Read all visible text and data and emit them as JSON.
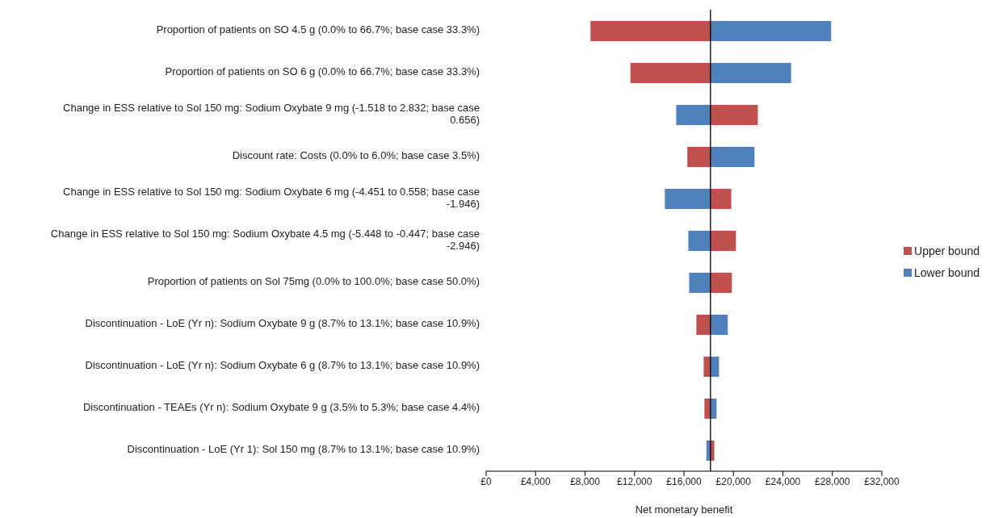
{
  "chart_data": {
    "type": "bar",
    "orientation": "horizontal",
    "xlabel": "Net monetary benefit",
    "categories": [
      "Proportion of patients on SO 4.5 g (0.0% to 66.7%; base case 33.3%)",
      "Proportion of patients on SO 6 g (0.0% to 66.7%; base case 33.3%)",
      "Change in ESS relative to Sol 150 mg: Sodium Oxybate 9 mg (-1.518 to 2.832; base case 0.656)",
      "Discount rate: Costs (0.0% to 6.0%; base case 3.5%)",
      "Change in ESS relative to Sol 150 mg: Sodium Oxybate 6 mg (-4.451 to 0.558; base case -1.946)",
      "Change in ESS relative to Sol 150 mg: Sodium Oxybate 4.5 mg (-5.448 to -0.447; base case -2.946)",
      "Proportion of patients on Sol 75mg (0.0% to 100.0%; base case 50.0%)",
      "Discontinuation - LoE (Yr n): Sodium Oxybate 9 g (8.7% to 13.1%; base case 10.9%)",
      "Discontinuation - LoE (Yr n): Sodium Oxybate 6 g (8.7% to 13.1%; base case 10.9%)",
      "Discontinuation - TEAEs (Yr n): Sodium Oxybate 9 g (3.5% to 5.3%; base case 4.4%)",
      "Discontinuation - LoE (Yr 1): Sol 150 mg (8.7% to 13.1%; base case 10.9%)"
    ],
    "series": [
      {
        "name": "Upper bound",
        "color": "#c0504d",
        "base": [
          18140,
          18140,
          18140,
          18140,
          18140,
          18140,
          18140,
          18140,
          18140,
          18140,
          18140
        ],
        "values": [
          -9700,
          -6470,
          3830,
          -1870,
          1680,
          2060,
          1730,
          -1140,
          -550,
          -490,
          310
        ]
      },
      {
        "name": "Lower bound",
        "color": "#4f81bd",
        "base": [
          18140,
          18140,
          18140,
          18140,
          18140,
          18140,
          18140,
          18140,
          18140,
          18140,
          18140
        ],
        "values": [
          9760,
          6520,
          -2770,
          3560,
          -3690,
          -1790,
          -1720,
          1400,
          690,
          490,
          -330
        ]
      }
    ],
    "xlim": [
      0,
      32000
    ],
    "xticks": [
      {
        "value": 0,
        "label": "£0"
      },
      {
        "value": 4000,
        "label": "£4,000"
      },
      {
        "value": 8000,
        "label": "£8,000"
      },
      {
        "value": 12000,
        "label": "£12,000"
      },
      {
        "value": 16000,
        "label": "£16,000"
      },
      {
        "value": 20000,
        "label": "£20,000"
      },
      {
        "value": 24000,
        "label": "£24,000"
      },
      {
        "value": 28000,
        "label": "£28,000"
      },
      {
        "value": 32000,
        "label": "£32,000"
      }
    ],
    "ref_lines": [
      {
        "axis": "x",
        "value": 18140,
        "color": "#000000"
      }
    ],
    "legend": "right",
    "grid": false
  }
}
